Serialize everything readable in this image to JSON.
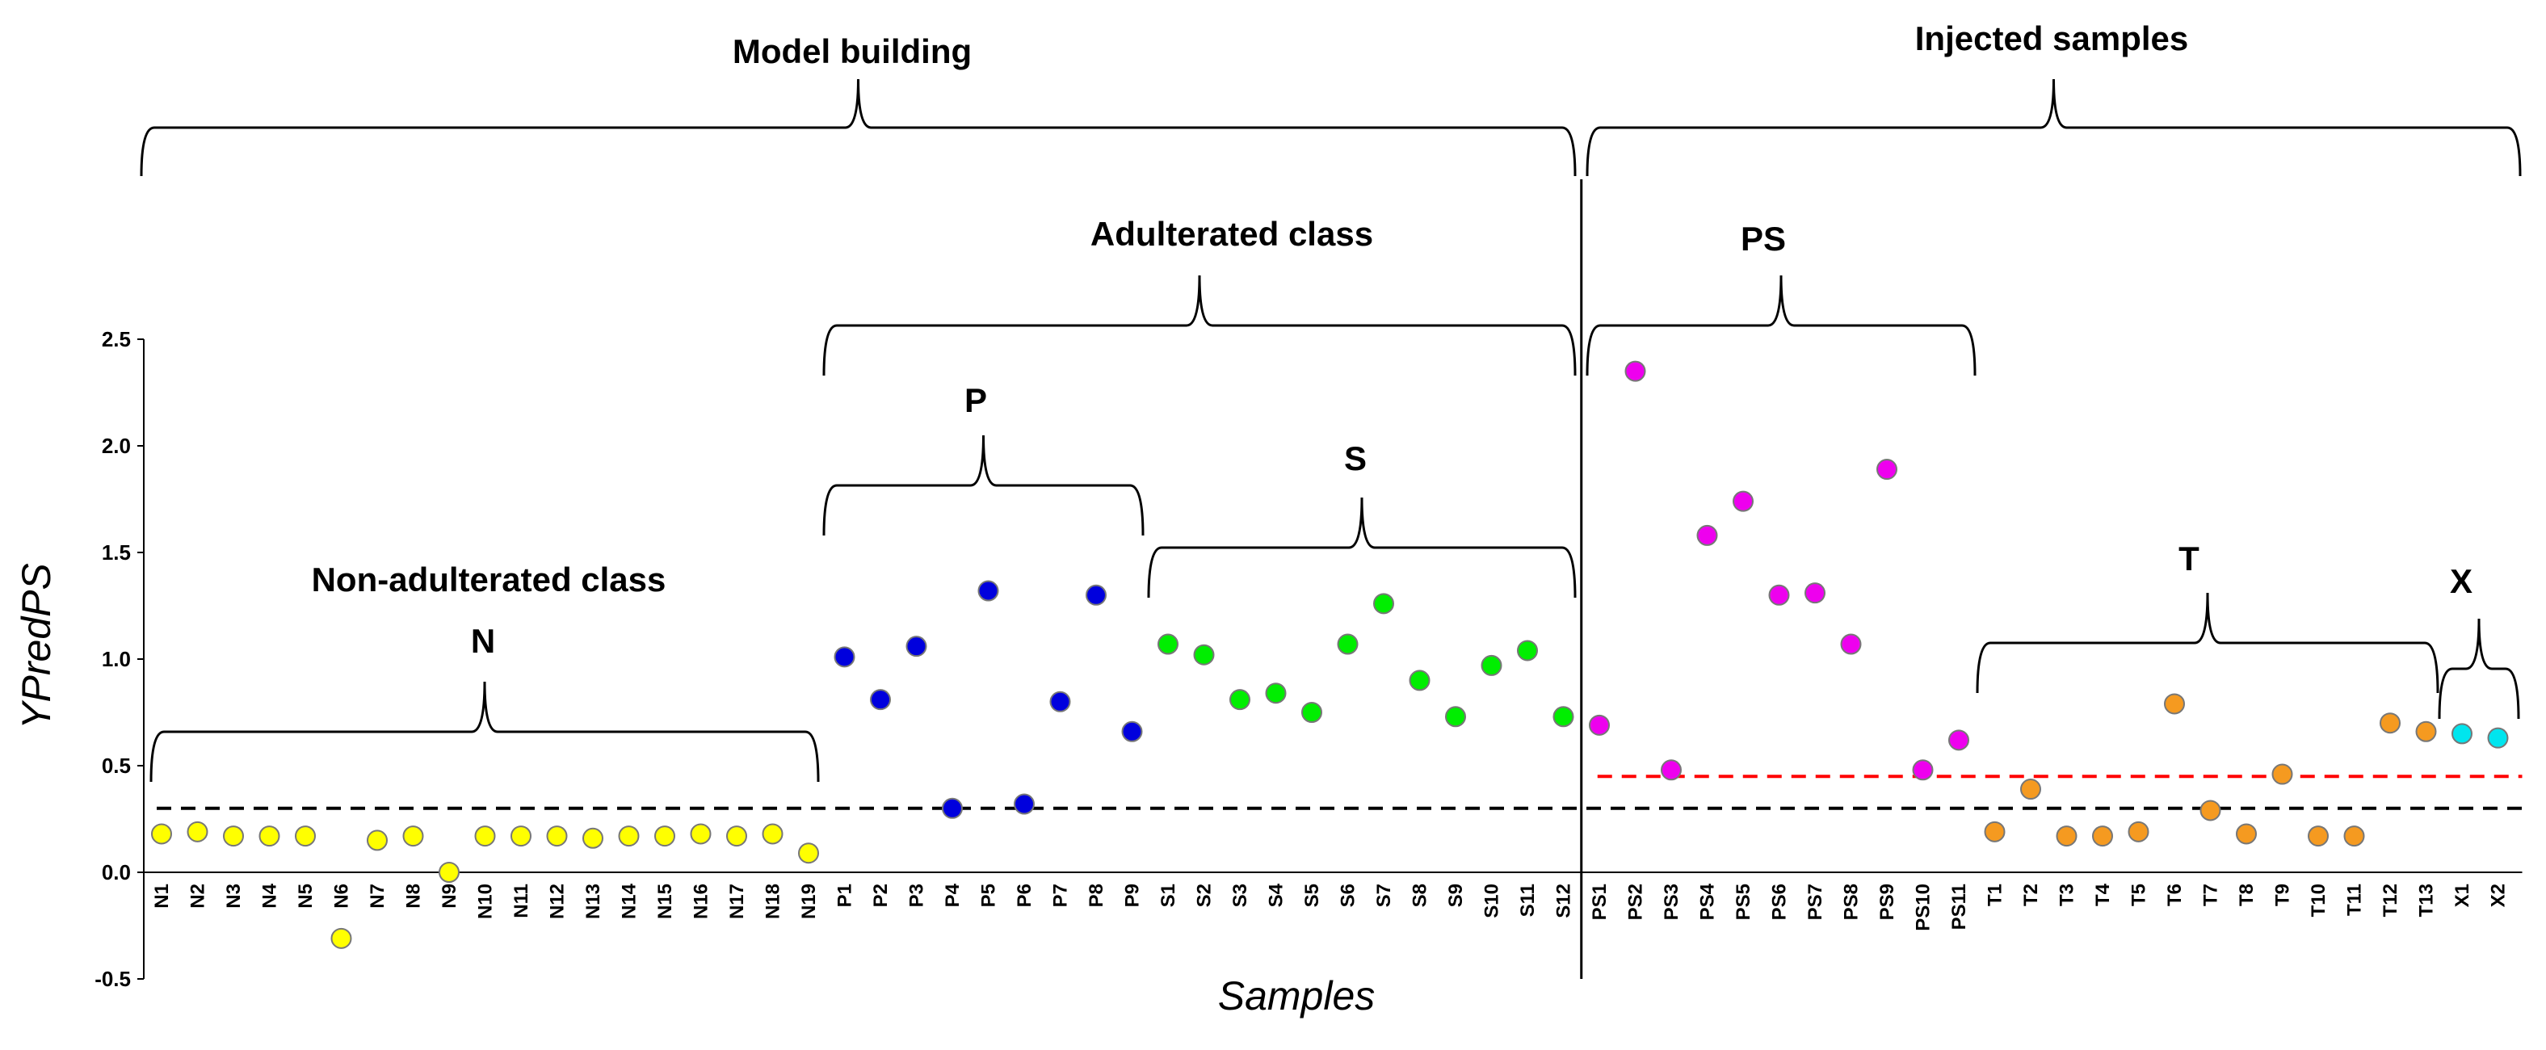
{
  "chart_data": {
    "type": "scatter",
    "ylabel": "YPredPS",
    "xlabel": "Samples",
    "ylim": [
      -0.5,
      2.5
    ],
    "yticks": [
      "-0.5",
      "0.0",
      "0.5",
      "1.0",
      "1.5",
      "2.0",
      "2.5"
    ],
    "categories": [
      "N1",
      "N2",
      "N3",
      "N4",
      "N5",
      "N6",
      "N7",
      "N8",
      "N9",
      "N10",
      "N11",
      "N12",
      "N13",
      "N14",
      "N15",
      "N16",
      "N17",
      "N18",
      "N19",
      "P1",
      "P2",
      "P3",
      "P4",
      "P5",
      "P6",
      "P7",
      "P8",
      "P9",
      "S1",
      "S2",
      "S3",
      "S4",
      "S5",
      "S6",
      "S7",
      "S8",
      "S9",
      "S10",
      "S11",
      "S12",
      "PS1",
      "PS2",
      "PS3",
      "PS4",
      "PS5",
      "PS6",
      "PS7",
      "PS8",
      "PS9",
      "PS10",
      "PS11",
      "T1",
      "T2",
      "T3",
      "T4",
      "T5",
      "T6",
      "T7",
      "T8",
      "T9",
      "T10",
      "T11",
      "T12",
      "T13",
      "X1",
      "X2"
    ],
    "series": [
      {
        "name": "N",
        "color": "#ffff00",
        "values": [
          0.18,
          0.19,
          0.17,
          0.17,
          0.17,
          -0.31,
          0.15,
          0.17,
          0.0,
          0.17,
          0.17,
          0.17,
          0.16,
          0.17,
          0.17,
          0.18,
          0.17,
          0.18,
          0.09
        ]
      },
      {
        "name": "P",
        "color": "#0000dd",
        "values": [
          1.01,
          0.81,
          1.06,
          0.3,
          1.32,
          0.32,
          0.8,
          1.3,
          0.66
        ]
      },
      {
        "name": "S",
        "color": "#00ee00",
        "values": [
          1.07,
          1.02,
          0.81,
          0.84,
          0.75,
          1.07,
          1.26,
          0.9,
          0.73,
          0.97,
          1.04,
          0.73
        ]
      },
      {
        "name": "PS",
        "color": "#ee00ee",
        "values": [
          0.69,
          2.35,
          0.48,
          1.58,
          1.74,
          1.3,
          1.31,
          1.07,
          1.89,
          0.48,
          0.62
        ]
      },
      {
        "name": "T",
        "color": "#f59a20",
        "values": [
          0.19,
          0.39,
          0.17,
          0.17,
          0.19,
          0.79,
          0.29,
          0.18,
          0.46,
          0.17,
          0.17,
          0.7,
          0.66
        ]
      },
      {
        "name": "X",
        "color": "#00e5ee",
        "values": [
          0.65,
          0.63
        ]
      }
    ],
    "threshold_lines": [
      {
        "name": "black-threshold",
        "value": 0.3,
        "color": "#000000",
        "from_category": "N1",
        "to_category": "X2"
      },
      {
        "name": "red-threshold",
        "value": 0.45,
        "color": "#ff0000",
        "from_category": "PS1",
        "to_category": "X2"
      }
    ],
    "annotations": {
      "model_building": "Model building",
      "injected_samples": "Injected samples",
      "adulterated_class": "Adulterated class",
      "non_adulterated_class": "Non-adulterated class",
      "group_n": "N",
      "group_p": "P",
      "group_s": "S",
      "group_ps": "PS",
      "group_t": "T",
      "group_x": "X"
    }
  }
}
